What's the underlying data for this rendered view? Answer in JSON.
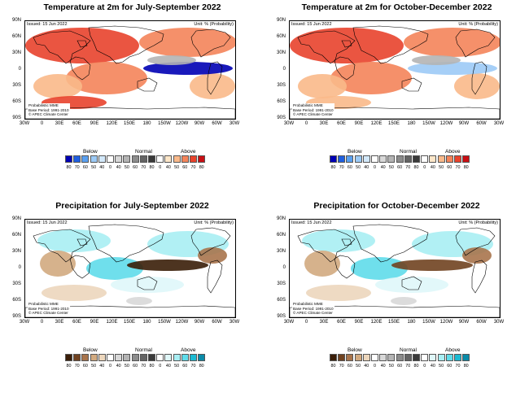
{
  "issued": "Issued: 15 Jun 2022",
  "unit": "Unit: % (Probability)",
  "info": [
    "Probabilistic MME",
    "Base Period: 1991-2010",
    "© APEC Climate Center"
  ],
  "lat_labels": [
    "90N",
    "60N",
    "30N",
    "0",
    "30S",
    "60S",
    "90S"
  ],
  "lon_labels": [
    "30W",
    "0",
    "30E",
    "60E",
    "90E",
    "120E",
    "150E",
    "180",
    "150W",
    "120W",
    "90W",
    "60W",
    "30W"
  ],
  "legend": {
    "below": "Below",
    "normal": "Normal",
    "above": "Above",
    "ticks": [
      "80",
      "70",
      "60",
      "50",
      "40",
      "0",
      "40",
      "50",
      "60",
      "70",
      "80",
      "0",
      "40",
      "50",
      "60",
      "70",
      "80"
    ]
  },
  "colors": {
    "temp_below": [
      "#0000b4",
      "#1f5fe0",
      "#5aa0f0",
      "#9ccaf6",
      "#d2e8fa"
    ],
    "temp_above": [
      "#fde6c8",
      "#f9b98a",
      "#f4845a",
      "#e8432c",
      "#c80f14"
    ],
    "prec_below": [
      "#3a1e08",
      "#704220",
      "#a8744c",
      "#d2aa80",
      "#ecd6bc"
    ],
    "prec_above": [
      "#dff7f9",
      "#a8eef3",
      "#5fdcea",
      "#1bbad2",
      "#0a8aa8"
    ],
    "normal": [
      "#ffffff",
      "#d8d8d8",
      "#b4b4b4",
      "#8c8c8c",
      "#646464",
      "#3a3a3a"
    ]
  },
  "panels": [
    {
      "title": "Temperature at 2m for July-September 2022",
      "variable": "temperature"
    },
    {
      "title": "Temperature at 2m for October-December 2022",
      "variable": "temperature"
    },
    {
      "title": "Precipitation for July-September 2022",
      "variable": "precipitation"
    },
    {
      "title": "Precipitation for October-December 2022",
      "variable": "precipitation"
    }
  ]
}
